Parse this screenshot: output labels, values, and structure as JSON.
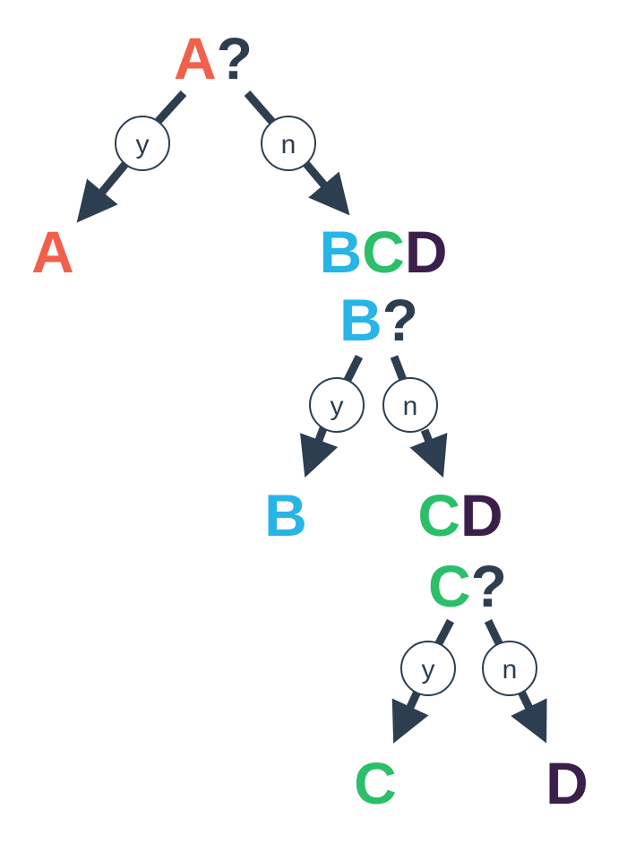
{
  "colors": {
    "A": "#f25f4a",
    "B": "#27b4e6",
    "C": "#2bbf6a",
    "D": "#3b1f4b",
    "q": "#2c3e50",
    "edge": "#2c3e50"
  },
  "tree": {
    "q1": {
      "letter": "A",
      "mark": "?"
    },
    "yes1": {
      "y": "y",
      "leaf": "A"
    },
    "no1": {
      "n": "n",
      "set": [
        "B",
        "C",
        "D"
      ]
    },
    "q2": {
      "letter": "B",
      "mark": "?"
    },
    "yes2": {
      "y": "y",
      "leaf": "B"
    },
    "no2": {
      "n": "n",
      "set": [
        "C",
        "D"
      ]
    },
    "q3": {
      "letter": "C",
      "mark": "?"
    },
    "yes3": {
      "y": "y",
      "leaf": "C"
    },
    "no3": {
      "n": "n",
      "leaf": "D"
    }
  }
}
